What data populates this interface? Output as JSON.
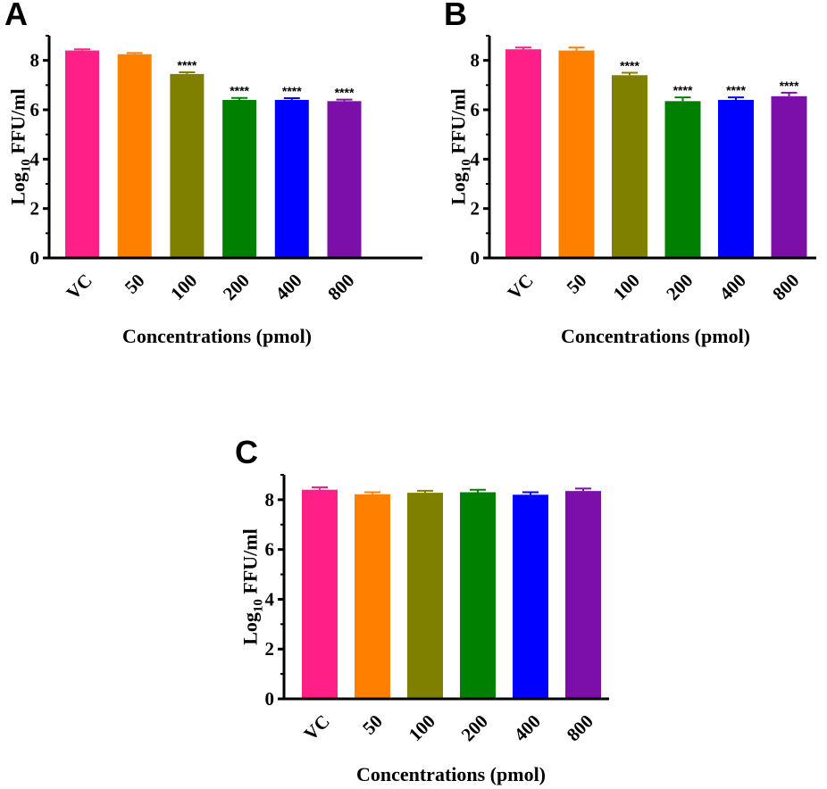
{
  "colors": [
    "#FF1F87",
    "#FF8000",
    "#808000",
    "#008000",
    "#0000FF",
    "#7B0FA8"
  ],
  "chart_data": [
    {
      "type": "bar",
      "panel": "A",
      "categories": [
        "VC",
        "50",
        "100",
        "200",
        "400",
        "800"
      ],
      "values": [
        8.4,
        8.25,
        7.45,
        6.4,
        6.4,
        6.35
      ],
      "errors": [
        0.05,
        0.05,
        0.07,
        0.08,
        0.07,
        0.06
      ],
      "annotations": [
        "",
        "",
        "****",
        "****",
        "****",
        "****"
      ],
      "xlabel": "Concentrations (pmol)",
      "ylabel_main": "Log",
      "ylabel_sub": "10",
      "ylabel_rest": " FFU/ml",
      "ylim": [
        0,
        9
      ],
      "yticks": [
        0,
        2,
        4,
        6,
        8
      ]
    },
    {
      "type": "bar",
      "panel": "B",
      "categories": [
        "VC",
        "50",
        "100",
        "200",
        "400",
        "800"
      ],
      "values": [
        8.45,
        8.4,
        7.4,
        6.35,
        6.4,
        6.55
      ],
      "errors": [
        0.07,
        0.12,
        0.1,
        0.15,
        0.1,
        0.14
      ],
      "annotations": [
        "",
        "",
        "****",
        "****",
        "****",
        "****"
      ],
      "xlabel": "Concentrations (pmol)",
      "ylabel_main": "Log",
      "ylabel_sub": "10",
      "ylabel_rest": " FFU/ml",
      "ylim": [
        0,
        9
      ],
      "yticks": [
        0,
        2,
        4,
        6,
        8
      ]
    },
    {
      "type": "bar",
      "panel": "C",
      "categories": [
        "VC",
        "50",
        "100",
        "200",
        "400",
        "800"
      ],
      "values": [
        8.4,
        8.22,
        8.28,
        8.3,
        8.2,
        8.35
      ],
      "errors": [
        0.1,
        0.08,
        0.08,
        0.1,
        0.1,
        0.1
      ],
      "annotations": [
        "",
        "",
        "",
        "",
        "",
        ""
      ],
      "xlabel": "Concentrations (pmol)",
      "ylabel_main": "Log",
      "ylabel_sub": "10",
      "ylabel_rest": " FFU/ml",
      "ylim": [
        0,
        9
      ],
      "yticks": [
        0,
        2,
        4,
        6,
        8
      ]
    }
  ]
}
